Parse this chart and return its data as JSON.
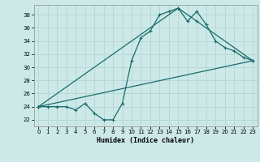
{
  "xlabel": "Humidex (Indice chaleur)",
  "xlim": [
    -0.5,
    23.5
  ],
  "ylim": [
    21.0,
    39.5
  ],
  "xticks": [
    0,
    1,
    2,
    3,
    4,
    5,
    6,
    7,
    8,
    9,
    10,
    11,
    12,
    13,
    14,
    15,
    16,
    17,
    18,
    19,
    20,
    21,
    22,
    23
  ],
  "yticks": [
    22,
    24,
    26,
    28,
    30,
    32,
    34,
    36,
    38
  ],
  "bg_color": "#cce9e8",
  "line_color": "#1a6b6b",
  "grid_color": "#b8d8d8",
  "line1_x": [
    0,
    1,
    2,
    3,
    4,
    5,
    6,
    7,
    8,
    9,
    10,
    11,
    12,
    13,
    14,
    15,
    16,
    17,
    18,
    19,
    20,
    21,
    22,
    23
  ],
  "line1_y": [
    24,
    24,
    24,
    24,
    23.5,
    24.5,
    23,
    22,
    22,
    24.5,
    31,
    34.5,
    35.5,
    38,
    38.5,
    39,
    37,
    38.5,
    36.5,
    34,
    33,
    32.5,
    31.5,
    31
  ],
  "line2_x": [
    0,
    15,
    17,
    23
  ],
  "line2_y": [
    24,
    39,
    37,
    31
  ],
  "line3_x": [
    0,
    23
  ],
  "line3_y": [
    24,
    31
  ]
}
